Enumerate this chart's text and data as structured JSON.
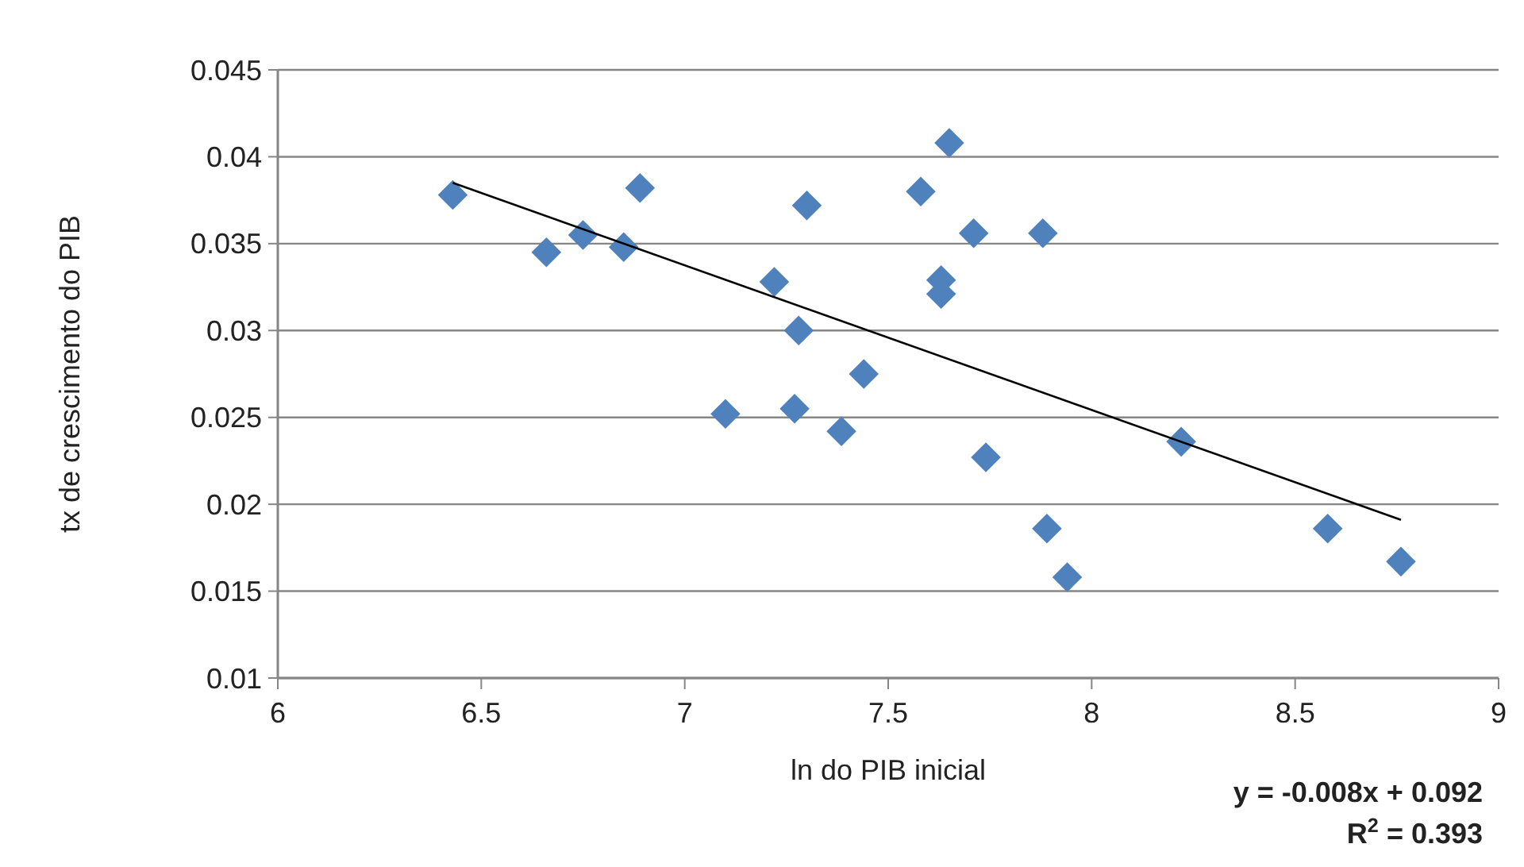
{
  "chart_data": {
    "type": "scatter",
    "xlabel": "ln do PIB inicial",
    "ylabel": "tx de crescimento do PIB",
    "xlim": [
      6,
      9
    ],
    "xticks": [
      6,
      6.5,
      7,
      7.5,
      8,
      8.5,
      9
    ],
    "ylim": [
      0.01,
      0.045
    ],
    "yticks": [
      0.01,
      0.015,
      0.02,
      0.025,
      0.03,
      0.035,
      0.04,
      0.045
    ],
    "grid": "y",
    "series": [
      {
        "type": "scatter",
        "color": "#4f81bd",
        "marker": "diamond",
        "x": [
          6.43,
          6.66,
          6.75,
          6.85,
          6.89,
          7.1,
          7.22,
          7.28,
          7.27,
          7.3,
          7.385,
          7.44,
          7.58,
          7.65,
          7.71,
          7.88,
          7.63,
          7.63,
          7.74,
          7.89,
          7.94,
          8.22,
          8.58,
          8.76
        ],
        "values": [
          0.0378,
          0.0345,
          0.0355,
          0.0348,
          0.0382,
          0.0252,
          0.0328,
          0.03,
          0.0255,
          0.0372,
          0.0242,
          0.0275,
          0.038,
          0.0408,
          0.0356,
          0.0356,
          0.0329,
          0.0321,
          0.0227,
          0.0186,
          0.0158,
          0.0236,
          0.0186,
          0.0167
        ]
      },
      {
        "type": "line",
        "color": "#000000",
        "x": [
          6.43,
          8.76
        ],
        "values": [
          0.0385,
          0.0191
        ],
        "marker": "none"
      }
    ],
    "annotations": [
      "y = -0.008x + 0.092",
      "R$^{2}$ = 0.393"
    ]
  }
}
